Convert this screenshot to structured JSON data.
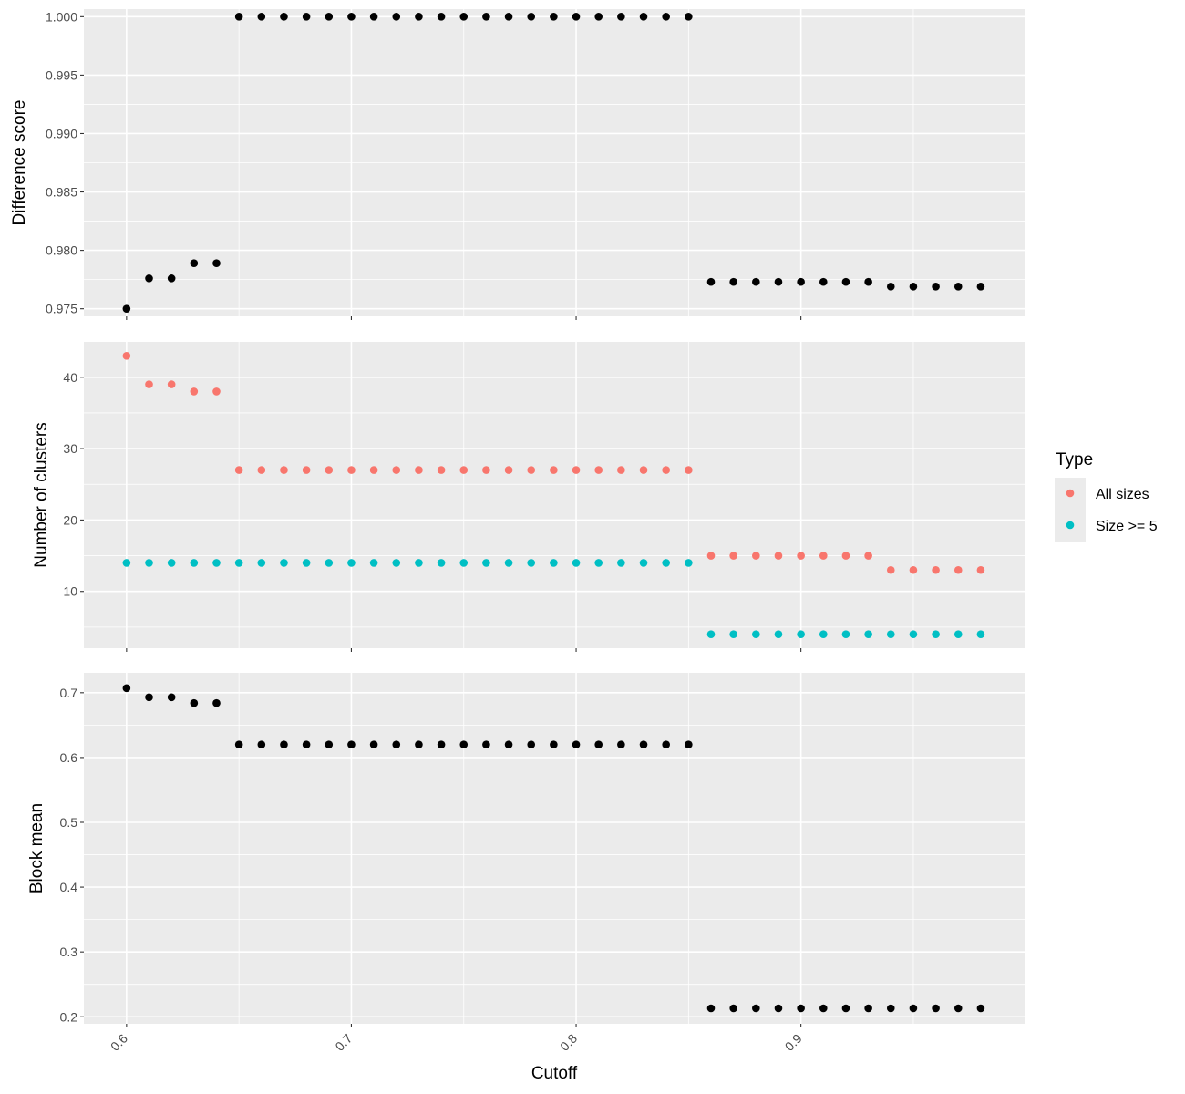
{
  "chart_data": {
    "type": "scatter",
    "xlabel": "Cutoff",
    "x_ticks": [
      0.6,
      0.7,
      0.8,
      0.9
    ],
    "x_tick_labels": [
      "0.6",
      "0.7",
      "0.8",
      "0.9"
    ],
    "xlim": [
      0.581,
      0.9995
    ],
    "x": [
      0.6,
      0.61,
      0.62,
      0.63,
      0.64,
      0.65,
      0.66,
      0.67,
      0.68,
      0.69,
      0.7,
      0.71,
      0.72,
      0.73,
      0.74,
      0.75,
      0.76,
      0.77,
      0.78,
      0.79,
      0.8,
      0.81,
      0.82,
      0.83,
      0.84,
      0.85,
      0.86,
      0.87,
      0.88,
      0.89,
      0.9,
      0.91,
      0.92,
      0.93,
      0.94,
      0.95,
      0.96,
      0.97,
      0.98
    ],
    "grid": true,
    "background": "#ebebeb",
    "panels": [
      {
        "ylabel": "Difference score",
        "ylim": [
          0.97435,
          1.00065
        ],
        "y_ticks": [
          0.975,
          0.98,
          0.985,
          0.99,
          0.995,
          1.0
        ],
        "y_tick_labels": [
          "0.975",
          "0.980",
          "0.985",
          "0.990",
          "0.995",
          "1.000"
        ],
        "series": [
          {
            "color": "#000000",
            "values": [
              0.975,
              0.9776,
              0.9776,
              0.9789,
              0.9789,
              1.0,
              1.0,
              1.0,
              1.0,
              1.0,
              1.0,
              1.0,
              1.0,
              1.0,
              1.0,
              1.0,
              1.0,
              1.0,
              1.0,
              1.0,
              1.0,
              1.0,
              1.0,
              1.0,
              1.0,
              1.0,
              0.9773,
              0.9773,
              0.9773,
              0.9773,
              0.9773,
              0.9773,
              0.9773,
              0.9773,
              0.9769,
              0.9769,
              0.9769,
              0.9769,
              0.9769
            ]
          }
        ]
      },
      {
        "ylabel": "Number of clusters",
        "ylim": [
          2.05,
          44.95
        ],
        "y_ticks": [
          10,
          20,
          30,
          40
        ],
        "y_tick_labels": [
          "10",
          "20",
          "30",
          "40"
        ],
        "series": [
          {
            "name": "All sizes",
            "color": "#f8766d",
            "values": [
              43,
              39,
              39,
              38,
              38,
              27,
              27,
              27,
              27,
              27,
              27,
              27,
              27,
              27,
              27,
              27,
              27,
              27,
              27,
              27,
              27,
              27,
              27,
              27,
              27,
              27,
              15,
              15,
              15,
              15,
              15,
              15,
              15,
              15,
              13,
              13,
              13,
              13,
              13
            ]
          },
          {
            "name": "Size >= 5",
            "color": "#00bfc4",
            "values": [
              14,
              14,
              14,
              14,
              14,
              14,
              14,
              14,
              14,
              14,
              14,
              14,
              14,
              14,
              14,
              14,
              14,
              14,
              14,
              14,
              14,
              14,
              14,
              14,
              14,
              14,
              4,
              4,
              4,
              4,
              4,
              4,
              4,
              4,
              4,
              4,
              4,
              4,
              4
            ]
          }
        ]
      },
      {
        "ylabel": "Block mean",
        "ylim": [
          0.1891,
          0.7307
        ],
        "y_ticks": [
          0.2,
          0.3,
          0.4,
          0.5,
          0.6,
          0.7
        ],
        "y_tick_labels": [
          "0.2",
          "0.3",
          "0.4",
          "0.5",
          "0.6",
          "0.7"
        ],
        "series": [
          {
            "color": "#000000",
            "values": [
              0.707,
              0.693,
              0.693,
              0.684,
              0.684,
              0.62,
              0.62,
              0.62,
              0.62,
              0.62,
              0.62,
              0.62,
              0.62,
              0.62,
              0.62,
              0.62,
              0.62,
              0.62,
              0.62,
              0.62,
              0.62,
              0.62,
              0.62,
              0.62,
              0.62,
              0.62,
              0.213,
              0.213,
              0.213,
              0.213,
              0.213,
              0.213,
              0.213,
              0.213,
              0.213,
              0.213,
              0.213,
              0.213,
              0.213
            ]
          }
        ]
      }
    ],
    "legend": {
      "title": "Type",
      "position": "right",
      "items": [
        {
          "label": "All sizes",
          "color": "#f8766d"
        },
        {
          "label": "Size >= 5",
          "color": "#00bfc4"
        }
      ]
    }
  }
}
